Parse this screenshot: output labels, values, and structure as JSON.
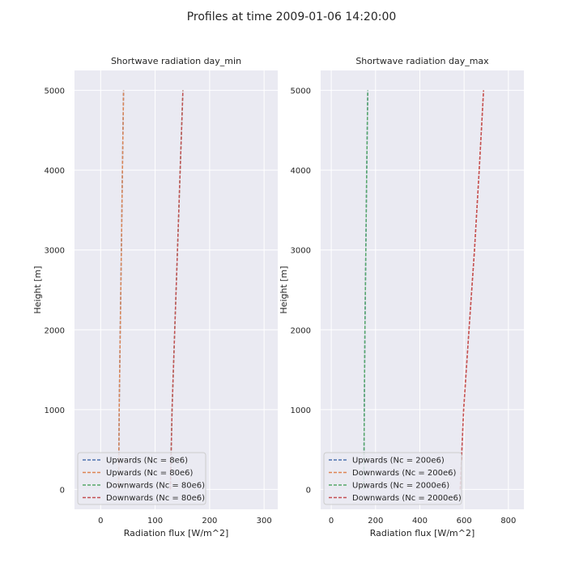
{
  "suptitle": "Profiles at time 2009-01-06 14:20:00",
  "colors": {
    "background": "#eaeaf2",
    "grid": "#ffffff",
    "blue": "#4c72b0",
    "orange": "#dd8452",
    "green": "#55a868",
    "red": "#c44e52"
  },
  "chart_data": [
    {
      "type": "line",
      "title": "Shortwave radiation day_min",
      "xlabel": "Radiation flux [W/m^2]",
      "ylabel": "Height [m]",
      "xlim": [
        -48,
        325
      ],
      "ylim": [
        -250,
        5250
      ],
      "xticks": [
        0,
        100,
        200,
        300
      ],
      "yticks": [
        0,
        1000,
        2000,
        3000,
        4000,
        5000
      ],
      "legend_position": "lower-left",
      "grid": true,
      "line_style": "dashed",
      "series": [
        {
          "name": "Upwards (Nc = 8e6)",
          "color": "#4c72b0",
          "x": [
            33,
            34,
            36,
            38,
            40,
            42
          ],
          "y": [
            0,
            1000,
            2000,
            3000,
            4000,
            5000
          ]
        },
        {
          "name": "Upwards (Nc = 80e6)",
          "color": "#dd8452",
          "x": [
            33,
            34,
            36,
            38,
            40,
            42
          ],
          "y": [
            0,
            1000,
            2000,
            3000,
            4000,
            5000
          ]
        },
        {
          "name": "Downwards (Nc = 80e6)",
          "color": "#55a868",
          "x": [
            128,
            131,
            136,
            141,
            146,
            151
          ],
          "y": [
            0,
            1000,
            2000,
            3000,
            4000,
            5000
          ]
        },
        {
          "name": "Downwards (Nc = 80e6)",
          "color": "#c44e52",
          "x": [
            128,
            131,
            136,
            141,
            146,
            151
          ],
          "y": [
            0,
            1000,
            2000,
            3000,
            4000,
            5000
          ]
        }
      ]
    },
    {
      "type": "line",
      "title": "Shortwave radiation day_max",
      "xlabel": "Radiation flux [W/m^2]",
      "ylabel": "Height [m]",
      "xlim": [
        -48,
        870
      ],
      "ylim": [
        -250,
        5250
      ],
      "xticks": [
        0,
        200,
        400,
        600,
        800
      ],
      "yticks": [
        0,
        1000,
        2000,
        3000,
        4000,
        5000
      ],
      "legend_position": "lower-left",
      "grid": true,
      "line_style": "dashed",
      "series": [
        {
          "name": "Upwards (Nc = 200e6)",
          "color": "#4c72b0",
          "x": [
            147,
            149,
            152,
            156,
            160,
            165
          ],
          "y": [
            0,
            1000,
            2000,
            3000,
            4000,
            5000
          ]
        },
        {
          "name": "Downwards (Nc = 200e6)",
          "color": "#dd8452",
          "x": [
            582,
            598,
            622,
            647,
            668,
            688
          ],
          "y": [
            0,
            1000,
            2000,
            3000,
            4000,
            5000
          ]
        },
        {
          "name": "Upwards (Nc = 2000e6)",
          "color": "#55a868",
          "x": [
            147,
            149,
            152,
            156,
            160,
            165
          ],
          "y": [
            0,
            1000,
            2000,
            3000,
            4000,
            5000
          ]
        },
        {
          "name": "Downwards (Nc = 2000e6)",
          "color": "#c44e52",
          "x": [
            582,
            598,
            622,
            647,
            668,
            688
          ],
          "y": [
            0,
            1000,
            2000,
            3000,
            4000,
            5000
          ]
        }
      ]
    }
  ]
}
